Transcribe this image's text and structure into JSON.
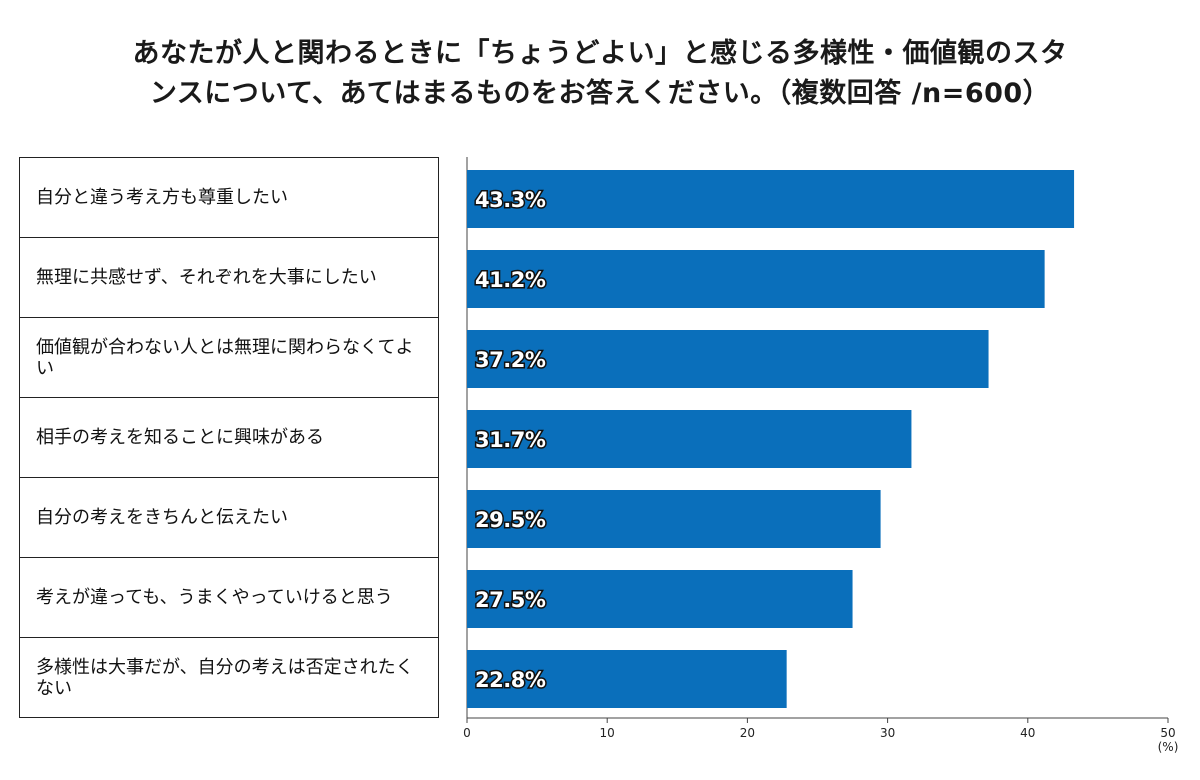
{
  "chart_data": {
    "type": "bar",
    "orientation": "horizontal",
    "title_lines": [
      "あなたが人と関わるときに「ちょうどよい」と感じる多様性・価値観のスタ",
      "ンスについて、あてはまるものをお答えください。（複数回答 /n=600）"
    ],
    "categories": [
      "自分と違う考え方も尊重したい",
      "無理に共感せず、それぞれを大事にしたい",
      "価値観が合わない人とは無理に関わらなくてよい",
      "相手の考えを知ることに興味がある",
      "自分の考えをきちんと伝えたい",
      "考えが違っても、うまくやっていけると思う",
      "多様性は大事だが、自分の考えは否定されたくない"
    ],
    "values": [
      43.3,
      41.2,
      37.2,
      31.7,
      29.5,
      27.5,
      22.8
    ],
    "value_labels": [
      "43.3%",
      "41.2%",
      "37.2%",
      "31.7%",
      "29.5%",
      "27.5%",
      "22.8%"
    ],
    "xlim": [
      0,
      50
    ],
    "x_ticks": [
      0,
      10,
      20,
      30,
      40,
      50
    ],
    "x_unit": "(%)",
    "bar_color": "#0a6fbb",
    "grid": false
  }
}
